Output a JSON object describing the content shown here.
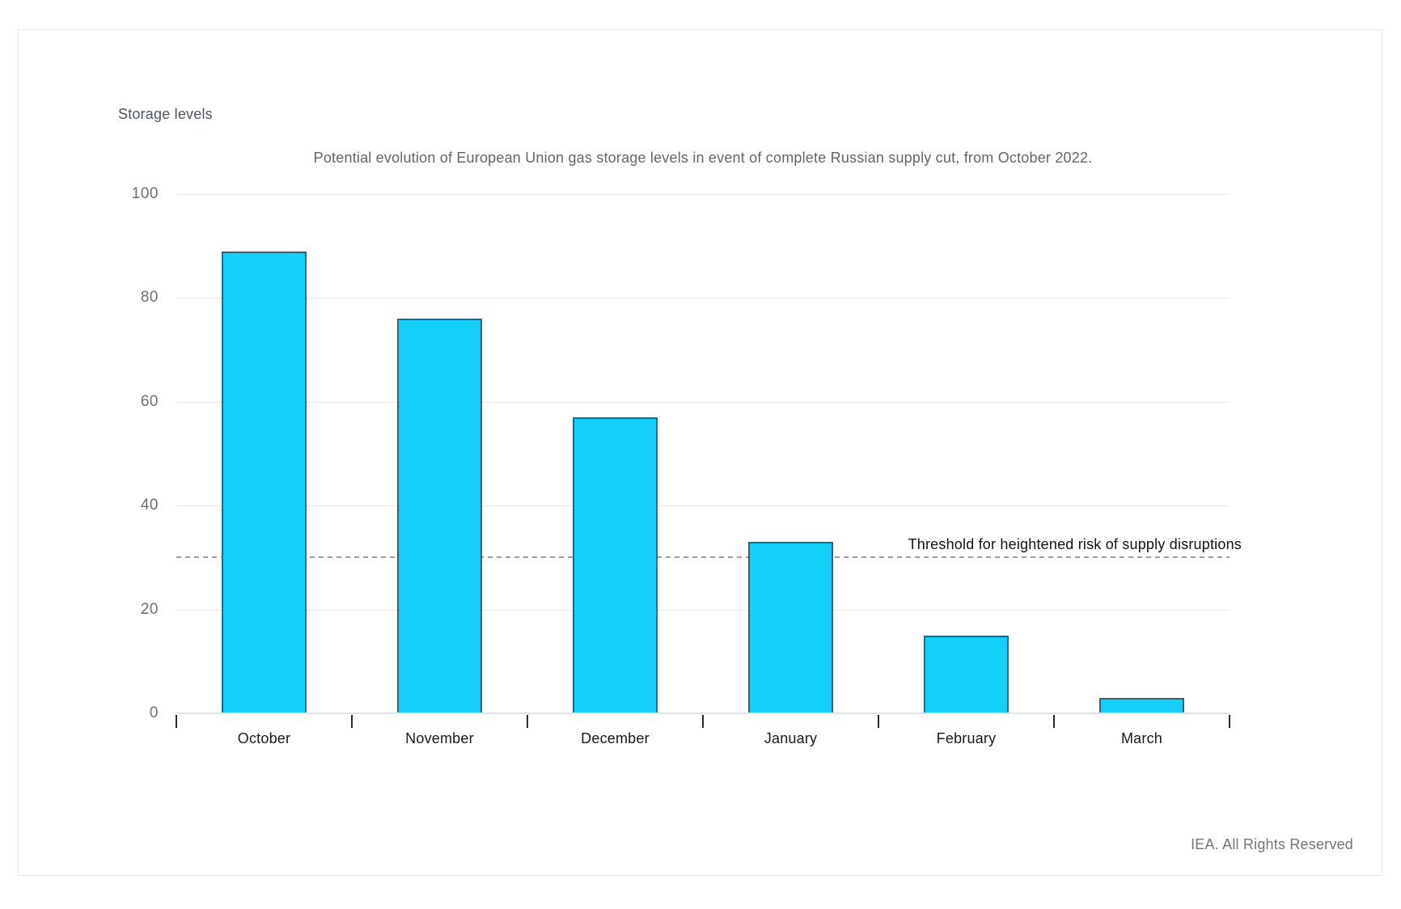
{
  "chart_data": {
    "type": "bar",
    "title": "Potential evolution of European Union gas storage levels in event of complete Russian supply cut, from October 2022.",
    "ylabel": "Storage levels",
    "xlabel": "",
    "categories": [
      "October",
      "November",
      "December",
      "January",
      "February",
      "March"
    ],
    "values": [
      89,
      76,
      57,
      33,
      15,
      3
    ],
    "ylim": [
      0,
      100
    ],
    "yticks": [
      0,
      20,
      40,
      60,
      80,
      100
    ],
    "grid": true,
    "legend": "none",
    "bar_color": "#14d0f8",
    "bar_border_color": "#2e6578",
    "threshold": {
      "value": 30,
      "label": "Threshold for heightened risk of supply disruptions",
      "line_color": "#9aa0a4"
    },
    "footer": "IEA. All Rights Reserved"
  }
}
